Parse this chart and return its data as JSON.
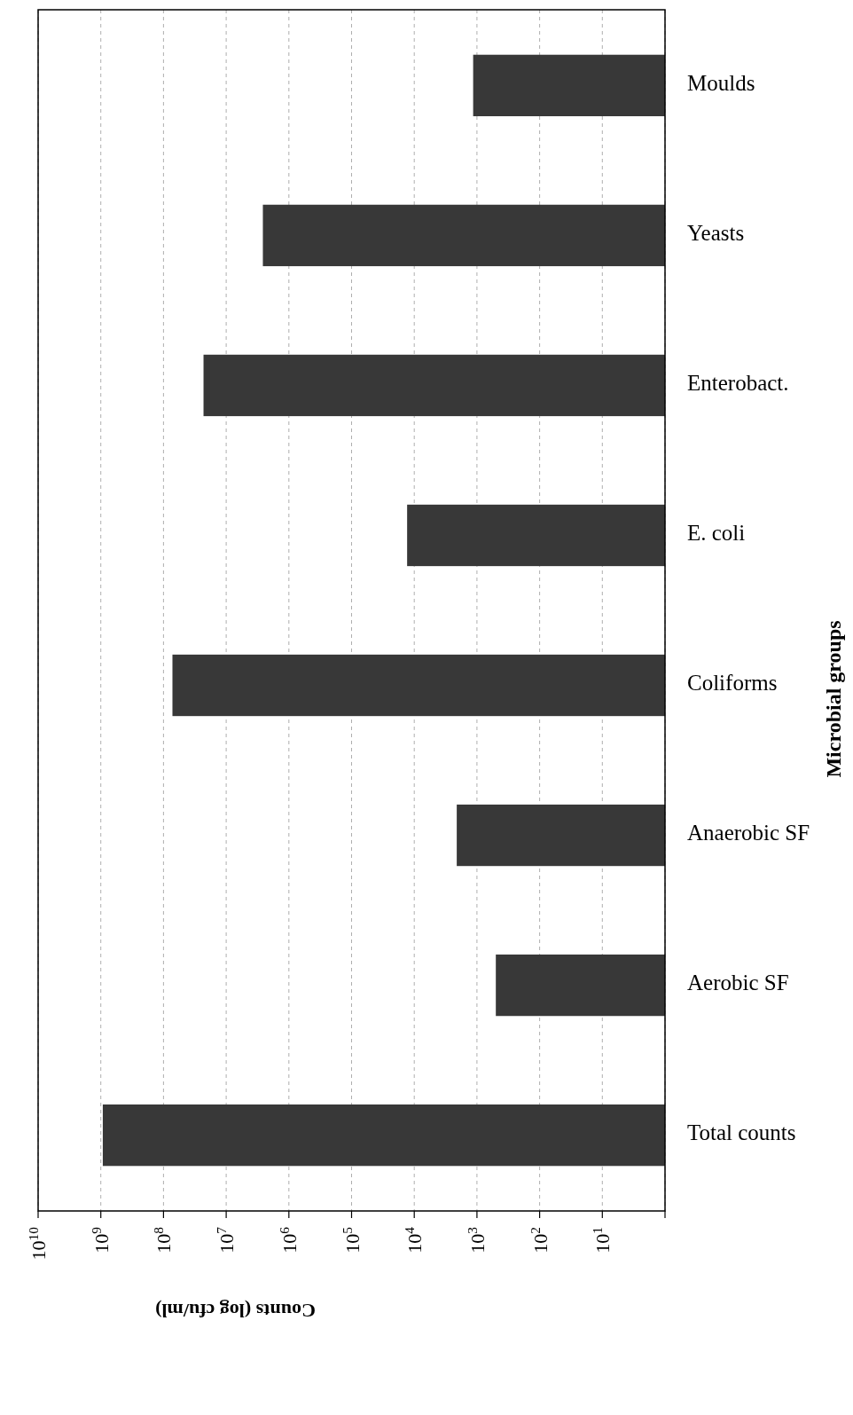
{
  "chart_data": {
    "type": "bar",
    "orientation": "horizontal",
    "xlabel": "Counts (log cfu/ml)",
    "ylabel": "Microbial groups",
    "categories": [
      "Moulds",
      "Yeasts",
      "Enterobact.",
      "E. coli",
      "Coliforms",
      "Anaerobic SF",
      "Aerobic SF",
      "Total counts"
    ],
    "values": [
      1150,
      2600000,
      23000000,
      13000,
      72000000,
      2100,
      500,
      930000000
    ],
    "color": "#383838",
    "log": "x",
    "xlim": [
      10000000000,
      1
    ],
    "xticks": [
      {
        "value": 10000000000,
        "label": "10$^{10}$"
      },
      {
        "value": 1000000000,
        "label": "10$^{9}$"
      },
      {
        "value": 100000000,
        "label": "10$^{8}$"
      },
      {
        "value": 10000000,
        "label": "10$^{7}$"
      },
      {
        "value": 1000000,
        "label": "10$^{6}$"
      },
      {
        "value": 100000,
        "label": "10$^{5}$"
      },
      {
        "value": 10000,
        "label": "10$^{4}$"
      },
      {
        "value": 1000,
        "label": "10$^{3}$"
      },
      {
        "value": 100,
        "label": "10$^{2}$"
      },
      {
        "value": 10,
        "label": "10$^{1}$"
      },
      {
        "value": 1,
        "label": null
      }
    ],
    "grid": "x",
    "line_style": "dashed"
  }
}
